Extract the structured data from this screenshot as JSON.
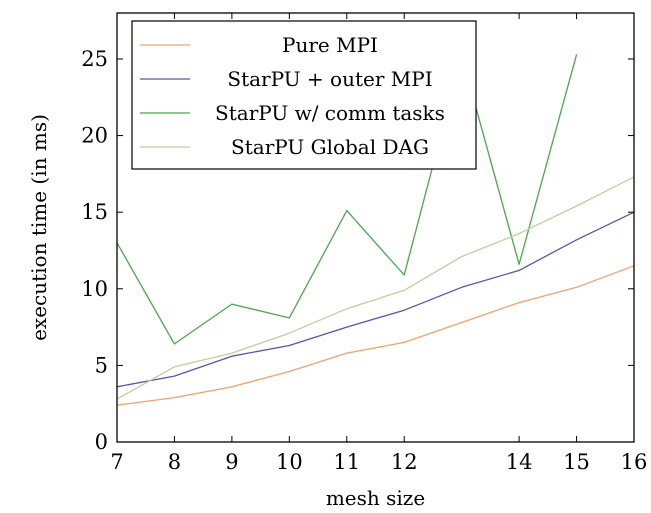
{
  "chart_data": {
    "type": "line",
    "title": "",
    "xlabel": "mesh size",
    "ylabel": "execution time (in ms)",
    "xlim": [
      7,
      16
    ],
    "ylim": [
      0,
      28
    ],
    "x_ticks": [
      7,
      8,
      9,
      10,
      11,
      12,
      14,
      15,
      16
    ],
    "y_ticks": [
      0,
      5,
      10,
      15,
      20,
      25
    ],
    "grid": false,
    "legend_position": "top-left",
    "series": [
      {
        "name": "Pure MPI",
        "color": "#f5a06e",
        "x": [
          7,
          8,
          9,
          10,
          11,
          12,
          13,
          14,
          15,
          16
        ],
        "y": [
          2.4,
          2.9,
          3.6,
          4.6,
          5.8,
          6.5,
          7.8,
          9.1,
          10.1,
          11.5
        ]
      },
      {
        "name": "StarPU + outer MPI",
        "color": "#5555b5",
        "x": [
          7,
          8,
          9,
          10,
          11,
          12,
          13,
          14,
          15,
          16
        ],
        "y": [
          3.6,
          4.3,
          5.6,
          6.3,
          7.5,
          8.6,
          10.1,
          11.2,
          13.2,
          15.0
        ]
      },
      {
        "name": "StarPU w/ comm tasks",
        "color": "#4aa84a",
        "x": [
          7,
          8,
          9,
          10,
          11,
          12,
          13,
          14,
          15
        ],
        "y": [
          13.0,
          6.4,
          9.0,
          8.1,
          15.1,
          10.9,
          25.2,
          11.6,
          25.3
        ]
      },
      {
        "name": "StarPU Global DAG",
        "color": "#bfcf9f",
        "x": [
          7,
          8,
          9,
          10,
          11,
          12,
          13,
          14,
          15,
          16
        ],
        "y": [
          2.8,
          4.9,
          5.8,
          7.1,
          8.7,
          9.9,
          12.1,
          13.6,
          15.4,
          17.3
        ]
      }
    ]
  }
}
